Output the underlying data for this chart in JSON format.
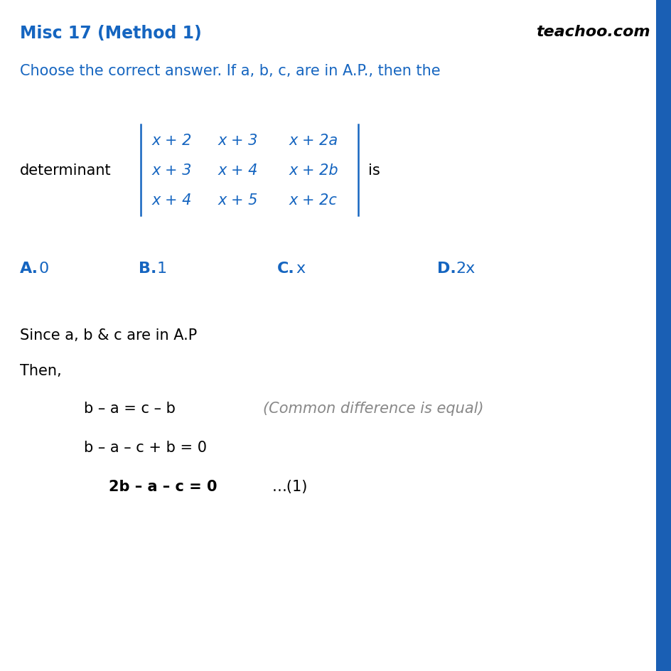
{
  "title": "Misc 17 (Method 1)",
  "title_color": "#1565c0",
  "brand": "teachoo.com",
  "brand_color": "#000000",
  "background_color": "#ffffff",
  "right_bar_color": "#1a5fb4",
  "question_text": "Choose the correct answer. If a, b, c, are in A.P., then the",
  "question_color": "#1565c0",
  "matrix_rows": [
    [
      "x + 2",
      "x + 3",
      "x + 2a"
    ],
    [
      "x + 3",
      "x + 4",
      "x + 2b"
    ],
    [
      "x + 4",
      "x + 5",
      "x + 2c"
    ]
  ],
  "matrix_label": "determinant",
  "matrix_suffix": "is",
  "matrix_color": "#1565c0",
  "options": [
    {
      "label": "A.",
      "value": "0"
    },
    {
      "label": "B.",
      "value": "1"
    },
    {
      "label": "C.",
      "value": "x"
    },
    {
      "label": "D.",
      "value": "2x"
    }
  ],
  "options_color": "#1565c0",
  "sol_line0": "Since a, b & c are in A.P",
  "sol_line1": "Then,",
  "sol_line2": "b – a = c – b",
  "sol_line2_comment": "(Common difference is equal)",
  "sol_line3": "b – a – c + b = 0",
  "sol_line4": "2b – a – c = 0",
  "sol_line4_ref": "…(1)",
  "gray_color": "#888888",
  "black_color": "#000000"
}
